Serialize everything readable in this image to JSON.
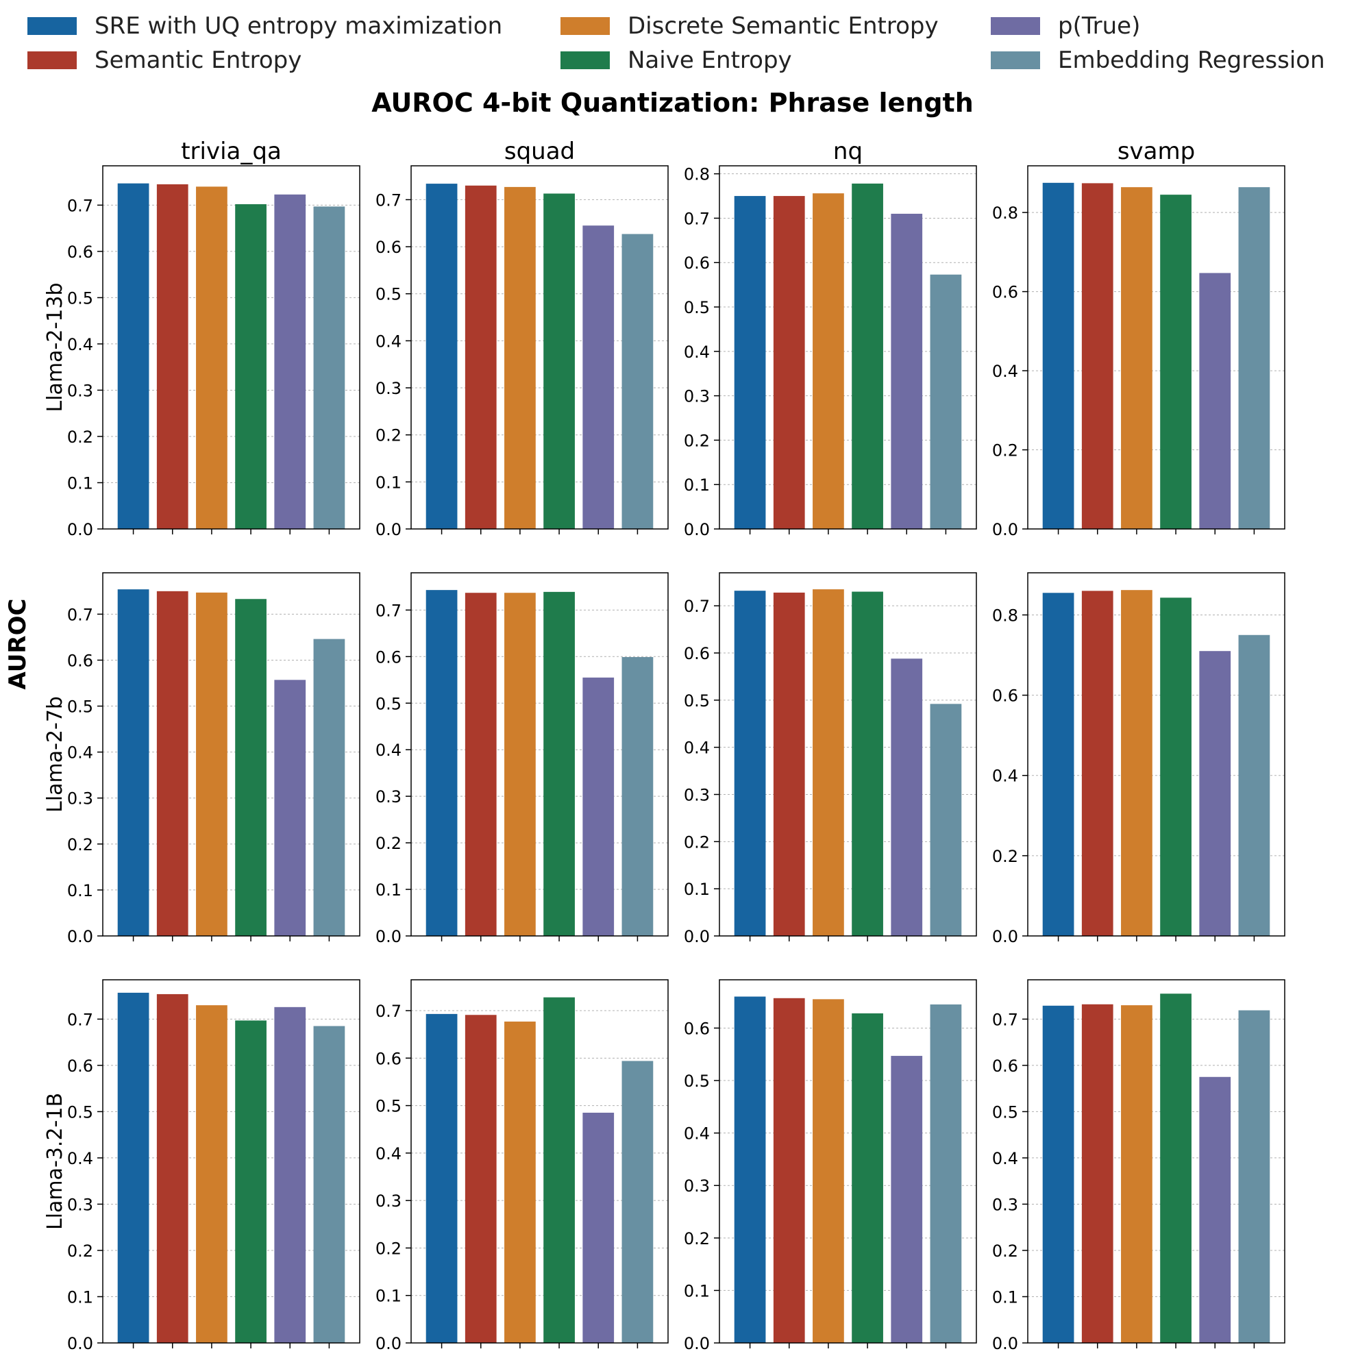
{
  "legend": [
    {
      "name": "SRE with UQ entropy maximization",
      "color": "#1764a0"
    },
    {
      "name": "Discrete Semantic Entropy",
      "color": "#cf7e2c"
    },
    {
      "name": "p(True)",
      "color": "#6f6ca3"
    },
    {
      "name": "Semantic Entropy",
      "color": "#ab3a2c"
    },
    {
      "name": "Naive Entropy",
      "color": "#1f7c4c"
    },
    {
      "name": "Embedding Regression",
      "color": "#6890a2"
    }
  ],
  "chart_data": {
    "type": "bar",
    "title": "AUROC 4-bit Quantization: Phrase length",
    "ylabel": "AUROC",
    "methods": [
      "SRE with UQ entropy maximization",
      "Semantic Entropy",
      "Discrete Semantic Entropy",
      "Naive Entropy",
      "p(True)",
      "Embedding Regression"
    ],
    "colors": [
      "#1764a0",
      "#ab3a2c",
      "#cf7e2c",
      "#1f7c4c",
      "#6f6ca3",
      "#6890a2"
    ],
    "datasets": [
      "trivia_qa",
      "squad",
      "nq",
      "svamp"
    ],
    "models": [
      "Llama-2-13b",
      "Llama-2-7b",
      "Llama-3.2-1B"
    ],
    "panels": [
      [
        {
          "ylim": [
            0,
            0.785
          ],
          "ticks": [
            0.0,
            0.1,
            0.2,
            0.3,
            0.4,
            0.5,
            0.6,
            0.7
          ],
          "values": [
            0.747,
            0.745,
            0.74,
            0.702,
            0.723,
            0.697
          ]
        },
        {
          "ylim": [
            0,
            0.772
          ],
          "ticks": [
            0.0,
            0.1,
            0.2,
            0.3,
            0.4,
            0.5,
            0.6,
            0.7
          ],
          "values": [
            0.734,
            0.73,
            0.727,
            0.713,
            0.645,
            0.627
          ]
        },
        {
          "ylim": [
            0,
            0.818
          ],
          "ticks": [
            0.0,
            0.1,
            0.2,
            0.3,
            0.4,
            0.5,
            0.6,
            0.7,
            0.8
          ],
          "values": [
            0.75,
            0.75,
            0.756,
            0.778,
            0.71,
            0.573
          ]
        },
        {
          "ylim": [
            0,
            0.918
          ],
          "ticks": [
            0.0,
            0.2,
            0.4,
            0.6,
            0.8
          ],
          "values": [
            0.875,
            0.874,
            0.864,
            0.845,
            0.647,
            0.864
          ]
        }
      ],
      [
        {
          "ylim": [
            0,
            0.79
          ],
          "ticks": [
            0.0,
            0.1,
            0.2,
            0.3,
            0.4,
            0.5,
            0.6,
            0.7
          ],
          "values": [
            0.754,
            0.75,
            0.747,
            0.733,
            0.557,
            0.646
          ]
        },
        {
          "ylim": [
            0,
            0.78
          ],
          "ticks": [
            0.0,
            0.1,
            0.2,
            0.3,
            0.4,
            0.5,
            0.6,
            0.7
          ],
          "values": [
            0.743,
            0.737,
            0.737,
            0.739,
            0.555,
            0.599
          ]
        },
        {
          "ylim": [
            0,
            0.77
          ],
          "ticks": [
            0.0,
            0.1,
            0.2,
            0.3,
            0.4,
            0.5,
            0.6,
            0.7
          ],
          "values": [
            0.732,
            0.728,
            0.735,
            0.73,
            0.588,
            0.492
          ]
        },
        {
          "ylim": [
            0,
            0.905
          ],
          "ticks": [
            0.0,
            0.2,
            0.4,
            0.6,
            0.8
          ],
          "values": [
            0.855,
            0.86,
            0.862,
            0.843,
            0.71,
            0.75
          ]
        }
      ],
      [
        {
          "ylim": [
            0,
            0.785
          ],
          "ticks": [
            0.0,
            0.1,
            0.2,
            0.3,
            0.4,
            0.5,
            0.6,
            0.7
          ],
          "values": [
            0.757,
            0.754,
            0.73,
            0.697,
            0.726,
            0.685
          ]
        },
        {
          "ylim": [
            0,
            0.765
          ],
          "ticks": [
            0.0,
            0.1,
            0.2,
            0.3,
            0.4,
            0.5,
            0.6,
            0.7
          ],
          "values": [
            0.693,
            0.691,
            0.677,
            0.728,
            0.485,
            0.594
          ]
        },
        {
          "ylim": [
            0,
            0.692
          ],
          "ticks": [
            0.0,
            0.1,
            0.2,
            0.3,
            0.4,
            0.5,
            0.6
          ],
          "values": [
            0.66,
            0.657,
            0.655,
            0.628,
            0.547,
            0.645
          ]
        },
        {
          "ylim": [
            0,
            0.785
          ],
          "ticks": [
            0.0,
            0.1,
            0.2,
            0.3,
            0.4,
            0.5,
            0.6,
            0.7
          ],
          "values": [
            0.729,
            0.732,
            0.73,
            0.755,
            0.575,
            0.719
          ]
        }
      ]
    ]
  }
}
